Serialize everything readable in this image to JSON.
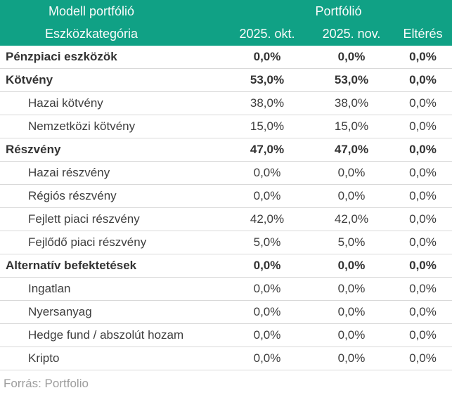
{
  "accent_color": "#10a185",
  "separator_color": "#d9d9d9",
  "chart_data": {
    "type": "table",
    "title": "Modell portfólió",
    "header_groups": {
      "left": "Modell portfólió",
      "right": "Portfólió"
    },
    "columns": [
      "Eszközkategória",
      "2025. okt.",
      "2025. nov.",
      "Eltérés"
    ],
    "rows": [
      {
        "label": "Pénzpiaci eszközök",
        "bold": true,
        "okt": "0,0%",
        "nov": "0,0%",
        "elteres": "0,0%"
      },
      {
        "label": "Kötvény",
        "bold": true,
        "okt": "53,0%",
        "nov": "53,0%",
        "elteres": "0,0%"
      },
      {
        "label": "Hazai kötvény",
        "bold": false,
        "okt": "38,0%",
        "nov": "38,0%",
        "elteres": "0,0%"
      },
      {
        "label": "Nemzetközi kötvény",
        "bold": false,
        "okt": "15,0%",
        "nov": "15,0%",
        "elteres": "0,0%"
      },
      {
        "label": "Részvény",
        "bold": true,
        "okt": "47,0%",
        "nov": "47,0%",
        "elteres": "0,0%"
      },
      {
        "label": "Hazai részvény",
        "bold": false,
        "okt": "0,0%",
        "nov": "0,0%",
        "elteres": "0,0%"
      },
      {
        "label": "Régiós részvény",
        "bold": false,
        "okt": "0,0%",
        "nov": "0,0%",
        "elteres": "0,0%"
      },
      {
        "label": "Fejlett piaci részvény",
        "bold": false,
        "okt": "42,0%",
        "nov": "42,0%",
        "elteres": "0,0%"
      },
      {
        "label": "Fejlődő piaci részvény",
        "bold": false,
        "okt": "5,0%",
        "nov": "5,0%",
        "elteres": "0,0%"
      },
      {
        "label": "Alternatív befektetések",
        "bold": true,
        "okt": "0,0%",
        "nov": "0,0%",
        "elteres": "0,0%"
      },
      {
        "label": "Ingatlan",
        "bold": false,
        "okt": "0,0%",
        "nov": "0,0%",
        "elteres": "0,0%"
      },
      {
        "label": "Nyersanyag",
        "bold": false,
        "okt": "0,0%",
        "nov": "0,0%",
        "elteres": "0,0%"
      },
      {
        "label": "Hedge fund / abszolút hozam",
        "bold": false,
        "okt": "0,0%",
        "nov": "0,0%",
        "elteres": "0,0%"
      },
      {
        "label": "Kripto",
        "bold": false,
        "okt": "0,0%",
        "nov": "0,0%",
        "elteres": "0,0%"
      }
    ]
  },
  "footer": {
    "source": "Forrás: Portfolio"
  }
}
